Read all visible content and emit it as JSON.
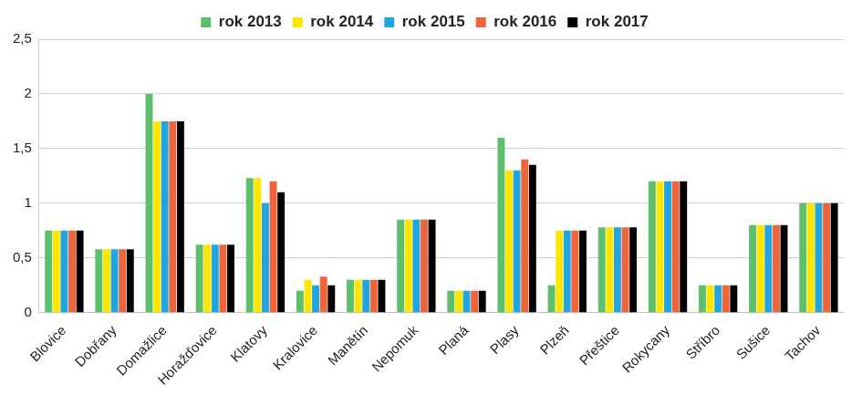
{
  "chart_data": {
    "type": "bar",
    "categories": [
      "Blovice",
      "Dobřany",
      "Domažlice",
      "Horažďovice",
      "Klatovy",
      "Kralovice",
      "Manětín",
      "Nepomuk",
      "Planá",
      "Plasy",
      "Plzeň",
      "Přeštice",
      "Rokycany",
      "Stříbro",
      "Sušice",
      "Tachov"
    ],
    "series": [
      {
        "name": "rok 2013",
        "color": "#5cbf6c",
        "values": [
          0.75,
          0.58,
          2.0,
          0.62,
          1.23,
          0.2,
          0.3,
          0.85,
          0.2,
          1.6,
          0.25,
          0.78,
          1.2,
          0.25,
          0.8,
          1.0
        ]
      },
      {
        "name": "rok 2014",
        "color": "#ffe600",
        "values": [
          0.75,
          0.58,
          1.75,
          0.62,
          1.23,
          0.3,
          0.3,
          0.85,
          0.2,
          1.3,
          0.75,
          0.78,
          1.2,
          0.25,
          0.8,
          1.0
        ]
      },
      {
        "name": "rok 2015",
        "color": "#1fa6e0",
        "values": [
          0.75,
          0.58,
          1.75,
          0.62,
          1.0,
          0.25,
          0.3,
          0.85,
          0.2,
          1.3,
          0.75,
          0.78,
          1.2,
          0.25,
          0.8,
          1.0
        ]
      },
      {
        "name": "rok 2016",
        "color": "#f0643c",
        "values": [
          0.75,
          0.58,
          1.75,
          0.62,
          1.2,
          0.33,
          0.3,
          0.85,
          0.2,
          1.4,
          0.75,
          0.78,
          1.2,
          0.25,
          0.8,
          1.0
        ]
      },
      {
        "name": "rok 2017",
        "color": "#000000",
        "values": [
          0.75,
          0.58,
          1.75,
          0.62,
          1.1,
          0.25,
          0.3,
          0.85,
          0.2,
          1.35,
          0.75,
          0.78,
          1.2,
          0.25,
          0.8,
          1.0
        ]
      }
    ],
    "ylim": [
      0,
      2.5
    ],
    "yticks": [
      0,
      {
        "value": 0.5,
        "label": "0,5"
      },
      1,
      {
        "value": 1.5,
        "label": "1,5"
      },
      2,
      {
        "value": 2.5,
        "label": "2,5"
      }
    ],
    "grid": true,
    "legend": "top"
  }
}
